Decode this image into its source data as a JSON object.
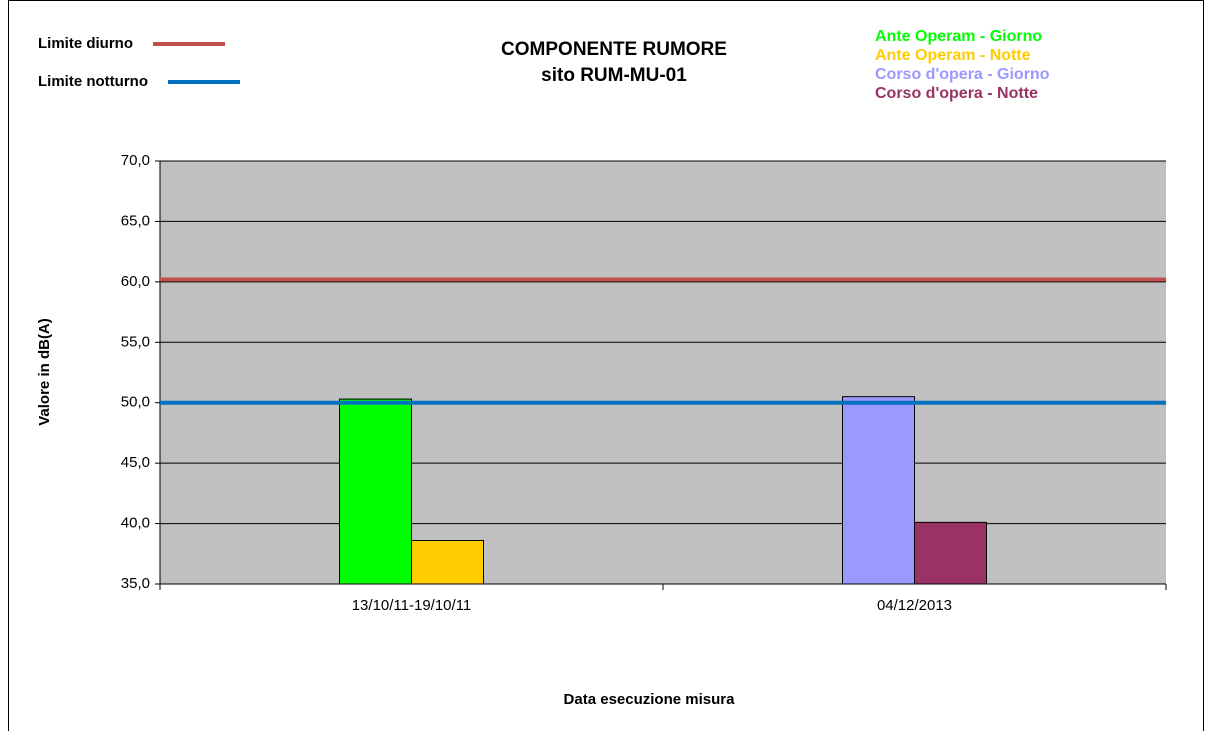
{
  "chart_data": {
    "type": "bar",
    "title": "COMPONENTE RUMORE",
    "subtitle": "sito RUM-MU-01",
    "x_label": "Data esecuzione misura",
    "y_label": "Valore in dB(A)",
    "categories": [
      "13/10/11-19/10/11",
      "04/12/2013"
    ],
    "series": [
      {
        "name": "Ante Operam - Giorno",
        "color": "#00ff00",
        "values": [
          50.3,
          null
        ]
      },
      {
        "name": "Ante Operam - Notte",
        "color": "#ffcc00",
        "values": [
          38.6,
          null
        ]
      },
      {
        "name": "Corso d'opera - Giorno",
        "color": "#9999ff",
        "values": [
          null,
          50.5
        ]
      },
      {
        "name": "Corso d'opera - Notte",
        "color": "#993366",
        "values": [
          null,
          40.1
        ]
      }
    ],
    "limits": [
      {
        "name": "Limite diurno",
        "color": "#c0504d",
        "value": 60.2
      },
      {
        "name": "Limite notturno",
        "color": "#0070c0",
        "value": 50
      }
    ],
    "ylim": [
      35,
      70
    ],
    "yticks": [
      {
        "value": 35,
        "label": "35,0"
      },
      {
        "value": 40,
        "label": "40,0"
      },
      {
        "value": 45,
        "label": "45,0"
      },
      {
        "value": 50,
        "label": "50,0"
      },
      {
        "value": 55,
        "label": "55,0"
      },
      {
        "value": 60,
        "label": "60,0"
      },
      {
        "value": 65,
        "label": "65,0"
      },
      {
        "value": 70,
        "label": "70,0"
      }
    ],
    "grid": true
  }
}
